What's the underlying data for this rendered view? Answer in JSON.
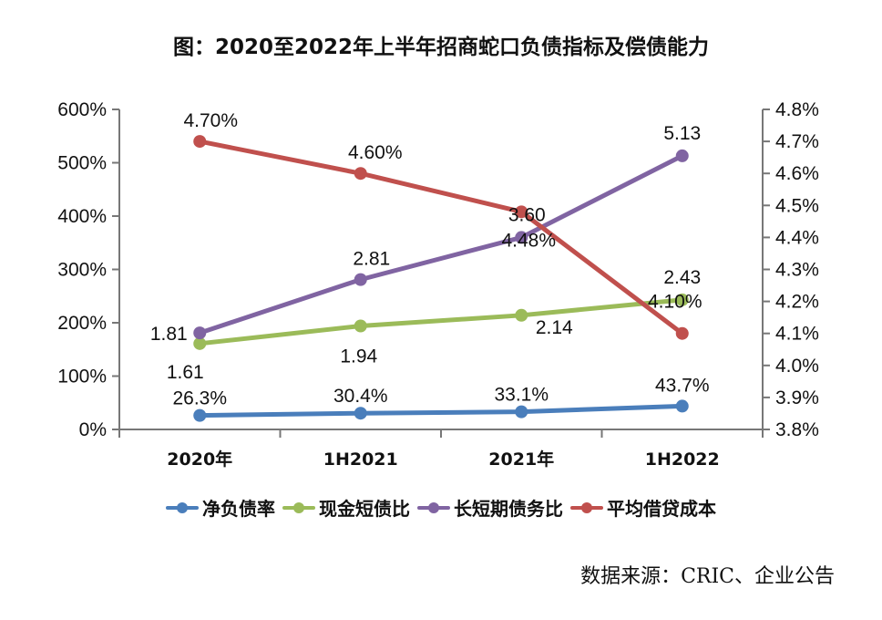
{
  "title": "图：2020至2022年上半年招商蛇口负债指标及偿债能力",
  "source": "数据来源：CRIC、企业公告",
  "chart_data": {
    "type": "line",
    "title": "图：2020至2022年上半年招商蛇口负债指标及偿债能力",
    "categories": [
      "2020年",
      "1H2021",
      "2021年",
      "1H2022"
    ],
    "left_axis": {
      "ylim": [
        0,
        600
      ],
      "unit": "%",
      "ticks": [
        "0%",
        "100%",
        "200%",
        "300%",
        "400%",
        "500%",
        "600%"
      ],
      "tick_values": [
        0,
        100,
        200,
        300,
        400,
        500,
        600
      ]
    },
    "right_axis": {
      "ylim": [
        3.8,
        4.8
      ],
      "unit": "%",
      "ticks": [
        "3.8%",
        "3.9%",
        "4.0%",
        "4.1%",
        "4.2%",
        "4.3%",
        "4.4%",
        "4.5%",
        "4.6%",
        "4.7%",
        "4.8%"
      ],
      "tick_values": [
        3.8,
        3.9,
        4.0,
        4.1,
        4.2,
        4.3,
        4.4,
        4.5,
        4.6,
        4.7,
        4.8
      ]
    },
    "series": [
      {
        "name": "净负债率",
        "axis": "left",
        "color": "#4a7ebb",
        "values": [
          26.3,
          30.4,
          33.1,
          43.7
        ],
        "labels": [
          "26.3%",
          "30.4%",
          "33.1%",
          "43.7%"
        ]
      },
      {
        "name": "现金短债比",
        "axis": "left",
        "color": "#9bbb59",
        "values": [
          161,
          194,
          214,
          243
        ],
        "labels": [
          "1.61",
          "1.94",
          "2.14",
          "2.43"
        ]
      },
      {
        "name": "长短期债务比",
        "axis": "left",
        "color": "#8064a2",
        "values": [
          181,
          281,
          360,
          513
        ],
        "labels": [
          "1.81",
          "2.81",
          "3.60",
          "5.13"
        ]
      },
      {
        "name": "平均借贷成本",
        "axis": "right",
        "color": "#c0504d",
        "values": [
          4.7,
          4.6,
          4.48,
          4.1
        ],
        "labels": [
          "4.70%",
          "4.60%",
          "4.48%",
          "4.10%"
        ]
      }
    ],
    "legend": "bottom",
    "grid": false
  }
}
